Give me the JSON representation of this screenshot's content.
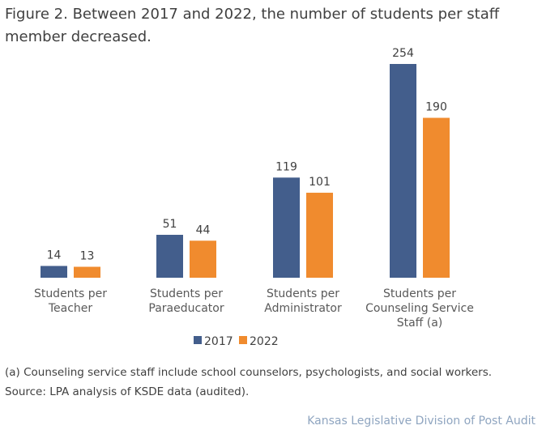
{
  "chart_data": {
    "type": "bar",
    "title": "Figure 2. Between 2017 and 2022, the number of students per staff member decreased.",
    "categories": [
      [
        "Students per",
        "Teacher"
      ],
      [
        "Students per",
        "Paraeducator"
      ],
      [
        "Students per",
        "Administrator"
      ],
      [
        "Students per",
        "Counseling Service",
        "Staff (a)"
      ]
    ],
    "series": [
      {
        "name": "2017",
        "color": "#435e8c",
        "values": [
          14,
          51,
          119,
          254
        ]
      },
      {
        "name": "2022",
        "color": "#f08b2e",
        "values": [
          13,
          44,
          101,
          190
        ]
      }
    ],
    "ylim": [
      0,
      254
    ],
    "xlabel": "",
    "ylabel": "",
    "grid": false,
    "legend": "bottom-center",
    "data_labels": true
  },
  "notes": {
    "footnote": "(a) Counseling service staff include school counselors, psychologists, and social workers.",
    "source": "Source: LPA analysis of KSDE data (audited).",
    "credit": "Kansas Legislative Division of Post Audit"
  }
}
